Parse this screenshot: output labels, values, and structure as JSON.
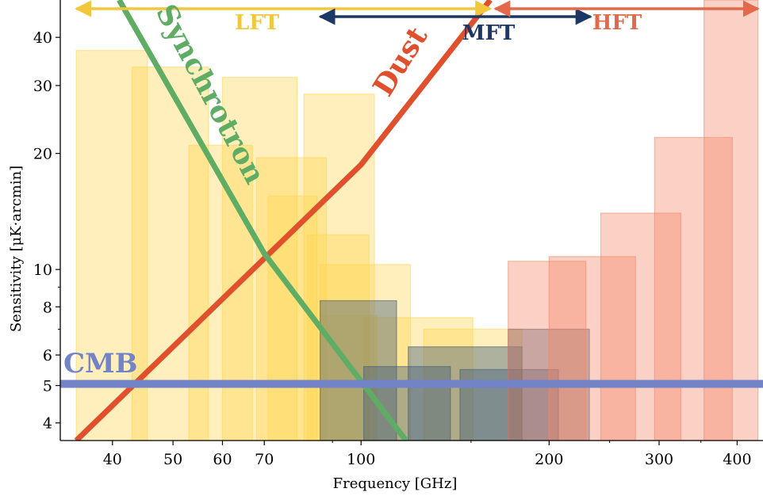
{
  "chart_data": {
    "type": "bar",
    "xlabel": "Frequency [GHz]",
    "ylabel": "Sensitivity [μK·arcmin]",
    "x_scale": "log",
    "y_scale": "log",
    "xlim": [
      33,
      440
    ],
    "ylim": [
      3.6,
      50
    ],
    "xticks": [
      40,
      50,
      60,
      70,
      100,
      200,
      300,
      400
    ],
    "yticks": [
      4,
      5,
      6,
      8,
      10,
      20,
      30,
      40
    ],
    "grid": false,
    "bands": [
      {
        "name": "LFT",
        "x_start": 35,
        "x_end": 161,
        "color": "#F3C73C"
      },
      {
        "name": "MFT",
        "x_start": 86,
        "x_end": 233,
        "color": "#1C3766"
      },
      {
        "name": "HFT",
        "x_start": 164,
        "x_end": 432,
        "color": "#E3694A"
      }
    ],
    "series": [
      {
        "name": "LFT",
        "color": "#FFD54F",
        "bars": [
          {
            "x_start": 35,
            "x_end": 45.5,
            "value": 37
          },
          {
            "x_start": 43,
            "x_end": 57,
            "value": 33.5
          },
          {
            "x_start": 53,
            "x_end": 67,
            "value": 21
          },
          {
            "x_start": 60,
            "x_end": 79,
            "value": 31.5
          },
          {
            "x_start": 68,
            "x_end": 88,
            "value": 19.5
          },
          {
            "x_start": 71,
            "x_end": 85,
            "value": 15.5
          },
          {
            "x_start": 81,
            "x_end": 105,
            "value": 28.5
          },
          {
            "x_start": 82,
            "x_end": 103,
            "value": 12.3
          },
          {
            "x_start": 86,
            "x_end": 120,
            "value": 10.3
          },
          {
            "x_start": 101,
            "x_end": 151,
            "value": 7.5
          },
          {
            "x_start": 126,
            "x_end": 181,
            "value": 7
          },
          {
            "x_start": 86,
            "x_end": 106,
            "value": 7.6
          }
        ]
      },
      {
        "name": "MFT",
        "color": "#415A77",
        "bars": [
          {
            "x_start": 86,
            "x_end": 114,
            "value": 8.3
          },
          {
            "x_start": 101,
            "x_end": 139,
            "value": 5.6
          },
          {
            "x_start": 119,
            "x_end": 181,
            "value": 6.3
          },
          {
            "x_start": 144,
            "x_end": 207,
            "value": 5.5
          },
          {
            "x_start": 172,
            "x_end": 232,
            "value": 7
          }
        ]
      },
      {
        "name": "HFT",
        "color": "#F58566",
        "bars": [
          {
            "x_start": 172,
            "x_end": 229,
            "value": 10.5
          },
          {
            "x_start": 200,
            "x_end": 275,
            "value": 10.8
          },
          {
            "x_start": 242,
            "x_end": 325,
            "value": 14
          },
          {
            "x_start": 295,
            "x_end": 393,
            "value": 22
          },
          {
            "x_start": 354,
            "x_end": 432,
            "value": 50
          }
        ]
      }
    ],
    "lines": [
      {
        "name": "Dust",
        "color": "#E0502D",
        "points": [
          [
            35,
            3.6
          ],
          [
            100,
            18.7
          ],
          [
            161,
            50
          ]
        ]
      },
      {
        "name": "Synchrotron",
        "color": "#5FAD65",
        "points": [
          [
            41,
            50
          ],
          [
            70,
            11
          ],
          [
            118,
            3.6
          ]
        ]
      },
      {
        "name": "CMB",
        "color": "#7283C7",
        "points": [
          [
            33,
            5.05
          ],
          [
            440,
            5.05
          ]
        ]
      }
    ]
  }
}
